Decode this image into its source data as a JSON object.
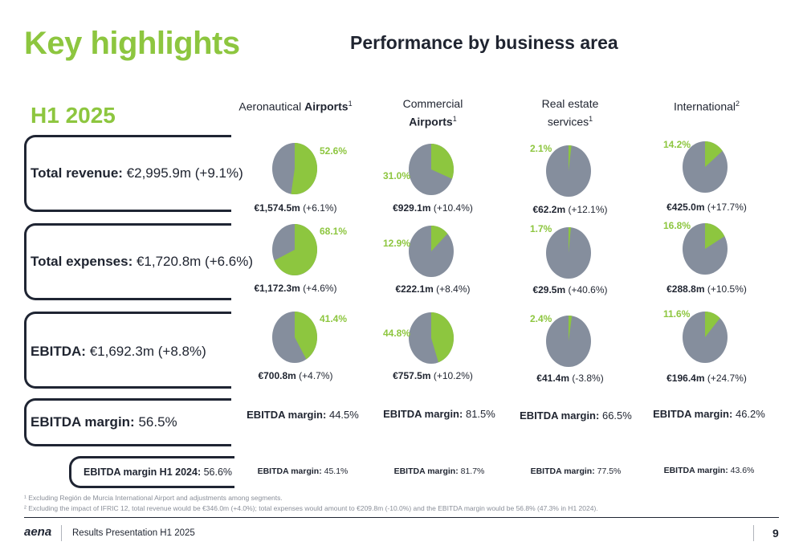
{
  "title": "Key highlights",
  "subtitle": "Performance by business area",
  "period": "H1 2025",
  "colors": {
    "accent": "#8dc63f",
    "pie_gray": "#858e9d",
    "dark": "#1f2533"
  },
  "metrics": [
    {
      "label": "Total revenue:",
      "value": "€2,995.9m (+9.1%)"
    },
    {
      "label": "Total expenses:",
      "value": "€1,720.8m (+6.6%)"
    },
    {
      "label": "EBITDA:",
      "value": "€1,692.3m (+8.8%)"
    },
    {
      "label": "EBITDA margin:",
      "value": "56.5%"
    },
    {
      "label": "EBITDA margin H1 2024:",
      "value": "56.6%"
    }
  ],
  "columns": [
    {
      "head_plain": "Aeronautical ",
      "head_bold": "Airports",
      "head_sup": "1",
      "revenue": {
        "pct_label": "52.6%",
        "share": 52.6,
        "amount": "€1,574.5m",
        "change": "(+6.1%)"
      },
      "expenses": {
        "pct_label": "68.1%",
        "share": 68.1,
        "amount": "€1,172.3m",
        "change": "(+4.6%)"
      },
      "ebitda": {
        "pct_label": "41.4%",
        "share": 41.4,
        "amount": "€700.8m",
        "change": "(+4.7%)"
      },
      "margin_label": "EBITDA margin:",
      "margin": "44.5%",
      "margin_prev_label": "EBITDA margin:",
      "margin_prev": "45.1%"
    },
    {
      "head_plain": "Commercial",
      "head_bold": "Airports",
      "head_sup": "1",
      "revenue": {
        "pct_label": "31.0%",
        "share": 31.0,
        "amount": "€929.1m",
        "change": "(+10.4%)"
      },
      "expenses": {
        "pct_label": "12.9%",
        "share": 12.9,
        "amount": "€222.1m",
        "change": "(+8.4%)"
      },
      "ebitda": {
        "pct_label": "44.8%",
        "share": 44.8,
        "amount": "€757.5m",
        "change": "(+10.2%)"
      },
      "margin_label": "EBITDA margin:",
      "margin": "81.5%",
      "margin_prev_label": "EBITDA margin:",
      "margin_prev": "81.7%"
    },
    {
      "head_plain": "Real estate",
      "head_bold": "services",
      "head_sup": "1",
      "revenue": {
        "pct_label": "2.1%",
        "share": 2.1,
        "amount": "€62.2m",
        "change": "(+12.1%)"
      },
      "expenses": {
        "pct_label": "1.7%",
        "share": 1.7,
        "amount": "€29.5m",
        "change": "(+40.6%)"
      },
      "ebitda": {
        "pct_label": "2.4%",
        "share": 2.4,
        "amount": "€41.4m",
        "change": "(-3.8%)"
      },
      "margin_label": "EBITDA margin:",
      "margin": "66.5%",
      "margin_prev_label": "EBITDA margin:",
      "margin_prev": "77.5%"
    },
    {
      "head_plain": "International",
      "head_bold": "",
      "head_sup": "2",
      "revenue": {
        "pct_label": "14.2%",
        "share": 14.2,
        "amount": "€425.0m",
        "change": "(+17.7%)"
      },
      "expenses": {
        "pct_label": "16.8%",
        "share": 16.8,
        "amount": "€288.8m",
        "change": "(+10.5%)"
      },
      "ebitda": {
        "pct_label": "11.6%",
        "share": 11.6,
        "amount": "€196.4m",
        "change": "(+24.7%)"
      },
      "margin_label": "EBITDA margin:",
      "margin": "46.2%",
      "margin_prev_label": "EBITDA margin:",
      "margin_prev": "43.6%"
    }
  ],
  "footnotes": [
    "¹ Excluding Región de Murcia International Airport and adjustments among segments.",
    "² Excluding the impact of IFRIC 12, total revenue would be €346.0m (+4.0%); total expenses would amount to €209.8m (-10.0%) and the EBITDA margin would be 56.8% (47.3% in H1 2024)."
  ],
  "footer": {
    "logo": "aena",
    "text": "Results Presentation H1 2025",
    "page": "9"
  }
}
